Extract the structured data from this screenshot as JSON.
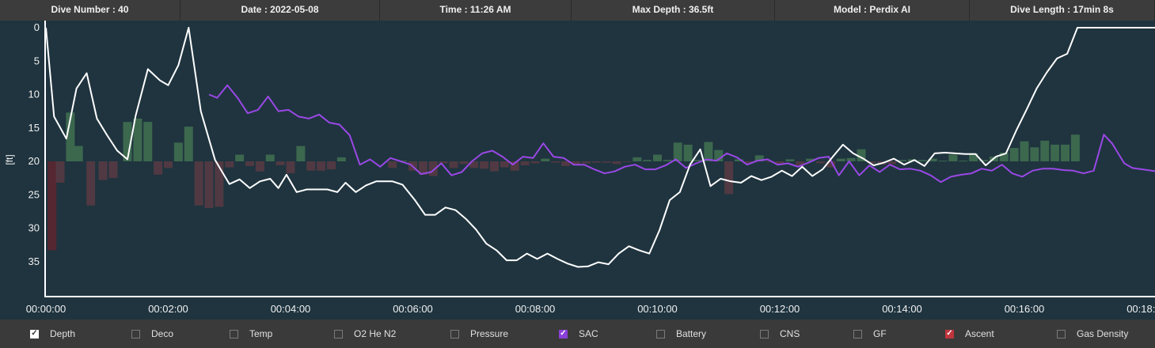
{
  "header": {
    "cells": [
      {
        "key": "dive_number",
        "text": "Dive Number : 40"
      },
      {
        "key": "date",
        "text": "Date : 2022-05-08"
      },
      {
        "key": "time",
        "text": "Time : 11:26 AM"
      },
      {
        "key": "max_depth",
        "text": "Max Depth : 36.5ft"
      },
      {
        "key": "model",
        "text": "Model : Perdix AI"
      },
      {
        "key": "dive_length",
        "text": "Dive Length : 17min 8s"
      }
    ]
  },
  "legend": {
    "items": [
      {
        "label": "Depth",
        "checked": true,
        "color": "#ffffff"
      },
      {
        "label": "Deco",
        "checked": false
      },
      {
        "label": "Temp",
        "checked": false
      },
      {
        "label": "O2 He N2",
        "checked": false
      },
      {
        "label": "Pressure",
        "checked": false
      },
      {
        "label": "SAC",
        "checked": true,
        "color": "#8b3fd9"
      },
      {
        "label": "Battery",
        "checked": false
      },
      {
        "label": "CNS",
        "checked": false
      },
      {
        "label": "GF",
        "checked": false
      },
      {
        "label": "Ascent",
        "checked": true,
        "color": "#c0343c"
      },
      {
        "label": "Gas Density",
        "checked": false
      }
    ]
  },
  "colors": {
    "depth": "#ffffff",
    "sac": "#9a48e6",
    "ascent_positive": "#3f6e50",
    "ascent_negative": "#553a42",
    "ascent_strong": "#5a2630",
    "background": "#1f343f"
  },
  "chart_data": {
    "type": "line",
    "ylabel": "[ft]",
    "y_reversed": true,
    "ylim": [
      0,
      40
    ],
    "y_ticks": [
      "0",
      "5",
      "10",
      "15",
      "20",
      "25",
      "30",
      "35"
    ],
    "x_ticks": [
      "00:00:00",
      "00:02:00",
      "00:04:00",
      "00:06:00",
      "00:08:00",
      "00:10:00",
      "00:12:00",
      "00:14:00",
      "00:16:00",
      "00:18:00"
    ],
    "xlim_seconds": [
      0,
      1090
    ],
    "series": [
      {
        "name": "Depth",
        "unit": "ft",
        "points": [
          [
            0,
            0
          ],
          [
            8,
            13.3
          ],
          [
            20,
            16.6
          ],
          [
            30,
            9.1
          ],
          [
            40,
            6.8
          ],
          [
            50,
            13.6
          ],
          [
            60,
            16.1
          ],
          [
            70,
            18.4
          ],
          [
            80,
            19.7
          ],
          [
            88,
            13.2
          ],
          [
            100,
            6.2
          ],
          [
            112,
            7.9
          ],
          [
            120,
            8.6
          ],
          [
            130,
            5.6
          ],
          [
            140,
            0
          ],
          [
            152,
            12.5
          ],
          [
            166,
            19.8
          ],
          [
            180,
            23.4
          ],
          [
            190,
            22.7
          ],
          [
            200,
            24.0
          ],
          [
            210,
            23.0
          ],
          [
            220,
            22.6
          ],
          [
            228,
            24.0
          ],
          [
            236,
            22.0
          ],
          [
            246,
            24.6
          ],
          [
            256,
            24.2
          ],
          [
            266,
            24.2
          ],
          [
            276,
            24.2
          ],
          [
            286,
            24.6
          ],
          [
            294,
            23.2
          ],
          [
            304,
            24.6
          ],
          [
            314,
            23.6
          ],
          [
            324,
            23.0
          ],
          [
            340,
            23.0
          ],
          [
            350,
            23.5
          ],
          [
            362,
            25.8
          ],
          [
            372,
            28.0
          ],
          [
            382,
            28.0
          ],
          [
            392,
            26.9
          ],
          [
            402,
            27.3
          ],
          [
            412,
            28.6
          ],
          [
            422,
            30.2
          ],
          [
            432,
            32.3
          ],
          [
            442,
            33.3
          ],
          [
            452,
            34.8
          ],
          [
            462,
            34.8
          ],
          [
            472,
            33.8
          ],
          [
            482,
            34.6
          ],
          [
            492,
            33.8
          ],
          [
            502,
            34.6
          ],
          [
            512,
            35.3
          ],
          [
            522,
            35.8
          ],
          [
            532,
            35.7
          ],
          [
            542,
            35.1
          ],
          [
            552,
            35.4
          ],
          [
            562,
            33.8
          ],
          [
            572,
            32.7
          ],
          [
            582,
            33.3
          ],
          [
            592,
            33.8
          ],
          [
            602,
            30.3
          ],
          [
            612,
            25.8
          ],
          [
            622,
            24.6
          ],
          [
            632,
            20.5
          ],
          [
            642,
            18.2
          ],
          [
            652,
            23.7
          ],
          [
            662,
            22.6
          ],
          [
            672,
            23.0
          ],
          [
            682,
            23.2
          ],
          [
            692,
            22.2
          ],
          [
            702,
            22.8
          ],
          [
            712,
            22.3
          ],
          [
            722,
            21.4
          ],
          [
            732,
            22.2
          ],
          [
            742,
            20.8
          ],
          [
            752,
            22.2
          ],
          [
            762,
            21.2
          ],
          [
            772,
            19.3
          ],
          [
            782,
            17.5
          ],
          [
            792,
            18.8
          ],
          [
            802,
            19.6
          ],
          [
            812,
            20.6
          ],
          [
            822,
            20.2
          ],
          [
            832,
            19.6
          ],
          [
            842,
            20.5
          ],
          [
            852,
            19.8
          ],
          [
            862,
            20.7
          ],
          [
            872,
            18.8
          ],
          [
            882,
            18.7
          ],
          [
            892,
            18.8
          ],
          [
            902,
            18.9
          ],
          [
            912,
            18.9
          ],
          [
            922,
            20.6
          ],
          [
            932,
            19.3
          ],
          [
            942,
            18.8
          ],
          [
            952,
            15.4
          ],
          [
            962,
            12.3
          ],
          [
            972,
            9.1
          ],
          [
            982,
            6.7
          ],
          [
            992,
            4.6
          ],
          [
            1002,
            3.9
          ],
          [
            1012,
            0
          ],
          [
            1022,
            0
          ],
          [
            1090,
            0
          ]
        ]
      },
      {
        "name": "SAC",
        "points": [
          [
            160,
            10.0
          ],
          [
            168,
            10.5
          ],
          [
            178,
            8.6
          ],
          [
            188,
            10.5
          ],
          [
            198,
            12.8
          ],
          [
            208,
            12.3
          ],
          [
            218,
            10.3
          ],
          [
            228,
            12.5
          ],
          [
            238,
            12.3
          ],
          [
            248,
            13.3
          ],
          [
            258,
            13.6
          ],
          [
            268,
            13.0
          ],
          [
            278,
            14.2
          ],
          [
            288,
            14.5
          ],
          [
            298,
            16.1
          ],
          [
            308,
            20.5
          ],
          [
            318,
            19.7
          ],
          [
            328,
            20.8
          ],
          [
            338,
            19.5
          ],
          [
            348,
            20.0
          ],
          [
            358,
            20.5
          ],
          [
            368,
            21.9
          ],
          [
            378,
            21.6
          ],
          [
            388,
            20.3
          ],
          [
            398,
            22.1
          ],
          [
            408,
            21.6
          ],
          [
            418,
            20.0
          ],
          [
            428,
            18.8
          ],
          [
            438,
            18.4
          ],
          [
            448,
            19.3
          ],
          [
            458,
            20.5
          ],
          [
            468,
            19.3
          ],
          [
            478,
            19.5
          ],
          [
            488,
            17.3
          ],
          [
            498,
            19.3
          ],
          [
            508,
            19.5
          ],
          [
            518,
            20.5
          ],
          [
            528,
            20.5
          ],
          [
            538,
            21.2
          ],
          [
            548,
            21.8
          ],
          [
            558,
            21.5
          ],
          [
            568,
            20.8
          ],
          [
            578,
            20.5
          ],
          [
            588,
            21.2
          ],
          [
            598,
            21.2
          ],
          [
            608,
            20.6
          ],
          [
            618,
            19.7
          ],
          [
            628,
            21.0
          ],
          [
            638,
            20.3
          ],
          [
            648,
            19.7
          ],
          [
            658,
            19.9
          ],
          [
            668,
            18.8
          ],
          [
            678,
            19.4
          ],
          [
            688,
            20.5
          ],
          [
            698,
            19.9
          ],
          [
            708,
            19.7
          ],
          [
            718,
            20.5
          ],
          [
            728,
            20.3
          ],
          [
            738,
            20.8
          ],
          [
            748,
            20.2
          ],
          [
            758,
            19.5
          ],
          [
            768,
            19.3
          ],
          [
            778,
            22.1
          ],
          [
            788,
            20.0
          ],
          [
            798,
            22.1
          ],
          [
            808,
            20.6
          ],
          [
            818,
            21.6
          ],
          [
            828,
            20.5
          ],
          [
            838,
            21.2
          ],
          [
            848,
            21.1
          ],
          [
            858,
            21.4
          ],
          [
            868,
            22.1
          ],
          [
            878,
            23.1
          ],
          [
            888,
            22.3
          ],
          [
            898,
            22.0
          ],
          [
            908,
            21.8
          ],
          [
            918,
            21.1
          ],
          [
            928,
            21.4
          ],
          [
            938,
            20.5
          ],
          [
            948,
            21.8
          ],
          [
            958,
            22.3
          ],
          [
            968,
            21.4
          ],
          [
            978,
            21.1
          ],
          [
            988,
            21.1
          ],
          [
            998,
            21.3
          ],
          [
            1008,
            21.4
          ],
          [
            1018,
            21.8
          ],
          [
            1028,
            21.4
          ],
          [
            1038,
            16.0
          ],
          [
            1046,
            17.3
          ],
          [
            1058,
            20.3
          ],
          [
            1066,
            21.0
          ],
          [
            1090,
            21.5
          ]
        ]
      },
      {
        "name": "Ascent",
        "baseline_ft": 20,
        "bars": [
          [
            6,
            33.3
          ],
          [
            14,
            23.2
          ],
          [
            24,
            12.7
          ],
          [
            32,
            17.7
          ],
          [
            44,
            26.6
          ],
          [
            56,
            22.8
          ],
          [
            66,
            22.5
          ],
          [
            80,
            14.1
          ],
          [
            90,
            13.6
          ],
          [
            100,
            14.1
          ],
          [
            110,
            22.0
          ],
          [
            120,
            21.0
          ],
          [
            130,
            17.2
          ],
          [
            140,
            14.8
          ],
          [
            150,
            26.6
          ],
          [
            160,
            27.0
          ],
          [
            170,
            26.8
          ],
          [
            180,
            20.9
          ],
          [
            190,
            19.0
          ],
          [
            200,
            20.7
          ],
          [
            210,
            21.5
          ],
          [
            220,
            19.0
          ],
          [
            230,
            20.6
          ],
          [
            240,
            21.8
          ],
          [
            250,
            17.7
          ],
          [
            260,
            21.4
          ],
          [
            270,
            21.4
          ],
          [
            280,
            21.2
          ],
          [
            290,
            19.4
          ],
          [
            340,
            21.0
          ],
          [
            350,
            19.9
          ],
          [
            360,
            21.4
          ],
          [
            370,
            22.0
          ],
          [
            380,
            22.2
          ],
          [
            390,
            20.3
          ],
          [
            400,
            21.0
          ],
          [
            410,
            20.4
          ],
          [
            420,
            21.0
          ],
          [
            430,
            21.1
          ],
          [
            440,
            21.5
          ],
          [
            450,
            20.9
          ],
          [
            460,
            21.4
          ],
          [
            470,
            20.6
          ],
          [
            480,
            20.3
          ],
          [
            490,
            19.6
          ],
          [
            500,
            20.2
          ],
          [
            510,
            20.7
          ],
          [
            520,
            20.6
          ],
          [
            530,
            20.3
          ],
          [
            540,
            20.2
          ],
          [
            550,
            20.2
          ],
          [
            560,
            20.4
          ],
          [
            570,
            20.0
          ],
          [
            580,
            19.4
          ],
          [
            590,
            19.8
          ],
          [
            600,
            19.0
          ],
          [
            610,
            19.8
          ],
          [
            620,
            17.2
          ],
          [
            630,
            17.5
          ],
          [
            640,
            19.8
          ],
          [
            650,
            17.1
          ],
          [
            660,
            18.3
          ],
          [
            670,
            24.9
          ],
          [
            680,
            19.7
          ],
          [
            690,
            20.3
          ],
          [
            700,
            19.1
          ],
          [
            710,
            20.0
          ],
          [
            720,
            20.4
          ],
          [
            730,
            19.7
          ],
          [
            740,
            20.6
          ],
          [
            750,
            19.6
          ],
          [
            760,
            20.3
          ],
          [
            770,
            20.9
          ],
          [
            780,
            19.6
          ],
          [
            790,
            19.5
          ],
          [
            800,
            18.2
          ],
          [
            810,
            20.3
          ],
          [
            820,
            20.5
          ],
          [
            830,
            20.4
          ],
          [
            840,
            19.8
          ],
          [
            850,
            19.7
          ],
          [
            860,
            19.8
          ],
          [
            870,
            19.6
          ],
          [
            880,
            19.9
          ],
          [
            890,
            19.0
          ],
          [
            900,
            19.9
          ],
          [
            910,
            18.8
          ],
          [
            920,
            19.8
          ],
          [
            930,
            19.3
          ],
          [
            940,
            18.7
          ],
          [
            950,
            18.0
          ],
          [
            960,
            17.0
          ],
          [
            970,
            17.9
          ],
          [
            980,
            16.9
          ],
          [
            990,
            17.5
          ],
          [
            1000,
            17.5
          ],
          [
            1010,
            16.0
          ]
        ]
      }
    ],
    "legend_placement": "bottom"
  }
}
